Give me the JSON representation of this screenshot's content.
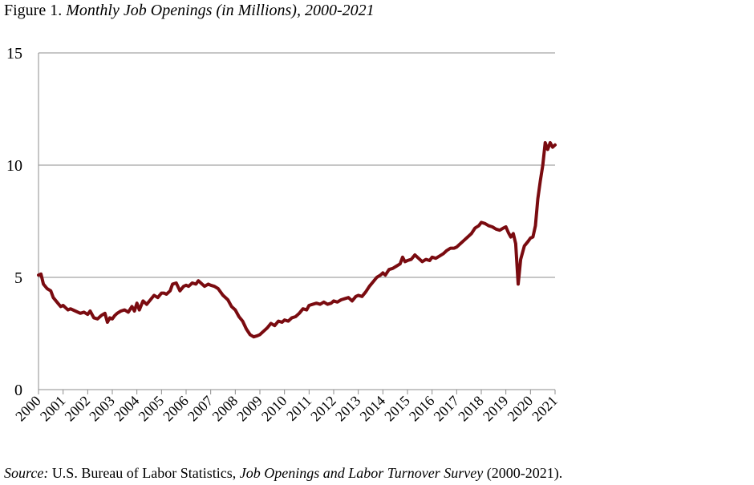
{
  "figure": {
    "label": "Figure 1.",
    "title": "Monthly Job Openings (in Millions), 2000-2021"
  },
  "source": {
    "label": "Source:",
    "text_1": "U.S. Bureau of Labor Statistics,",
    "survey": "Job Openings and Labor Turnover Survey",
    "text_2": "(2000-2021)."
  },
  "chart_data": {
    "type": "line",
    "title": "Monthly Job Openings (in Millions), 2000-2021",
    "xlabel": "",
    "ylabel": "",
    "xlim": [
      2000,
      2021
    ],
    "ylim": [
      0,
      15
    ],
    "yticks": [
      0,
      5,
      10,
      15
    ],
    "xticks": [
      "2000",
      "2001",
      "2002",
      "2003",
      "2004",
      "2005",
      "2006",
      "2007",
      "2008",
      "2009",
      "2010",
      "2011",
      "2012",
      "2013",
      "2014",
      "2015",
      "2016",
      "2017",
      "2018",
      "2019",
      "2020",
      "2021"
    ],
    "grid": "horizontal",
    "line_color": "#7a0b10",
    "series": [
      {
        "x": [
          2000.0,
          2000.1,
          2000.2,
          2000.35,
          2000.5,
          2000.6,
          2000.75,
          2000.9,
          2001.0,
          2001.1,
          2001.2,
          2001.3,
          2001.5,
          2001.7,
          2001.85,
          2002.0,
          2002.1,
          2002.25,
          2002.4,
          2002.55,
          2002.7,
          2002.8,
          2002.9,
          2003.0,
          2003.1,
          2003.2,
          2003.35,
          2003.5,
          2003.65,
          2003.8,
          2003.9,
          2004.0,
          2004.1,
          2004.25,
          2004.4,
          2004.55,
          2004.7,
          2004.85,
          2005.0,
          2005.1,
          2005.2,
          2005.35,
          2005.45,
          2005.6,
          2005.75,
          2005.9,
          2006.0,
          2006.1,
          2006.25,
          2006.4,
          2006.5,
          2006.6,
          2006.75,
          2006.9,
          2007.0,
          2007.15,
          2007.3,
          2007.5,
          2007.7,
          2007.85,
          2008.0,
          2008.15,
          2008.3,
          2008.45,
          2008.6,
          2008.75,
          2008.9,
          2009.0,
          2009.15,
          2009.3,
          2009.45,
          2009.6,
          2009.75,
          2009.9,
          2010.0,
          2010.15,
          2010.3,
          2010.45,
          2010.6,
          2010.75,
          2010.9,
          2011.0,
          2011.15,
          2011.3,
          2011.45,
          2011.6,
          2011.75,
          2011.9,
          2012.0,
          2012.15,
          2012.3,
          2012.45,
          2012.6,
          2012.75,
          2012.9,
          2013.0,
          2013.15,
          2013.3,
          2013.45,
          2013.6,
          2013.75,
          2013.9,
          2014.0,
          2014.1,
          2014.25,
          2014.4,
          2014.55,
          2014.7,
          2014.8,
          2014.9,
          2015.0,
          2015.15,
          2015.3,
          2015.45,
          2015.6,
          2015.75,
          2015.9,
          2016.0,
          2016.15,
          2016.3,
          2016.45,
          2016.6,
          2016.75,
          2016.9,
          2017.0,
          2017.15,
          2017.3,
          2017.45,
          2017.6,
          2017.75,
          2017.9,
          2018.0,
          2018.15,
          2018.3,
          2018.45,
          2018.6,
          2018.75,
          2018.9,
          2019.0,
          2019.1,
          2019.2,
          2019.3,
          2019.4,
          2019.5,
          2019.6,
          2019.75,
          2019.9,
          2020.0,
          2020.1,
          2020.2,
          2020.3,
          2020.4,
          2020.5,
          2020.6,
          2020.7,
          2020.8,
          2020.9,
          2021.0
        ],
        "y": [
          5.1,
          5.15,
          4.7,
          4.5,
          4.4,
          4.1,
          3.9,
          3.7,
          3.75,
          3.65,
          3.55,
          3.6,
          3.5,
          3.4,
          3.45,
          3.35,
          3.5,
          3.2,
          3.15,
          3.3,
          3.4,
          3.0,
          3.2,
          3.15,
          3.3,
          3.4,
          3.5,
          3.55,
          3.45,
          3.7,
          3.5,
          3.85,
          3.55,
          3.95,
          3.8,
          4.0,
          4.2,
          4.1,
          4.3,
          4.3,
          4.25,
          4.4,
          4.7,
          4.75,
          4.4,
          4.6,
          4.65,
          4.6,
          4.75,
          4.7,
          4.85,
          4.75,
          4.6,
          4.7,
          4.65,
          4.6,
          4.5,
          4.2,
          4.0,
          3.7,
          3.55,
          3.25,
          3.05,
          2.7,
          2.45,
          2.35,
          2.4,
          2.45,
          2.6,
          2.75,
          2.95,
          2.85,
          3.05,
          3.0,
          3.1,
          3.05,
          3.2,
          3.25,
          3.4,
          3.6,
          3.55,
          3.75,
          3.8,
          3.85,
          3.8,
          3.9,
          3.8,
          3.85,
          3.95,
          3.9,
          4.0,
          4.05,
          4.1,
          3.95,
          4.15,
          4.2,
          4.15,
          4.35,
          4.6,
          4.8,
          5.0,
          5.1,
          5.2,
          5.1,
          5.35,
          5.4,
          5.5,
          5.6,
          5.9,
          5.7,
          5.75,
          5.8,
          6.0,
          5.85,
          5.7,
          5.8,
          5.75,
          5.9,
          5.85,
          5.95,
          6.05,
          6.2,
          6.3,
          6.3,
          6.35,
          6.5,
          6.65,
          6.8,
          6.95,
          7.2,
          7.3,
          7.45,
          7.4,
          7.3,
          7.25,
          7.15,
          7.1,
          7.2,
          7.25,
          7.0,
          6.8,
          6.95,
          6.5,
          4.7,
          5.8,
          6.4,
          6.6,
          6.75,
          6.8,
          7.3,
          8.5,
          9.3,
          10.0,
          11.0,
          10.7,
          11.0,
          10.8,
          10.9
        ]
      }
    ]
  }
}
